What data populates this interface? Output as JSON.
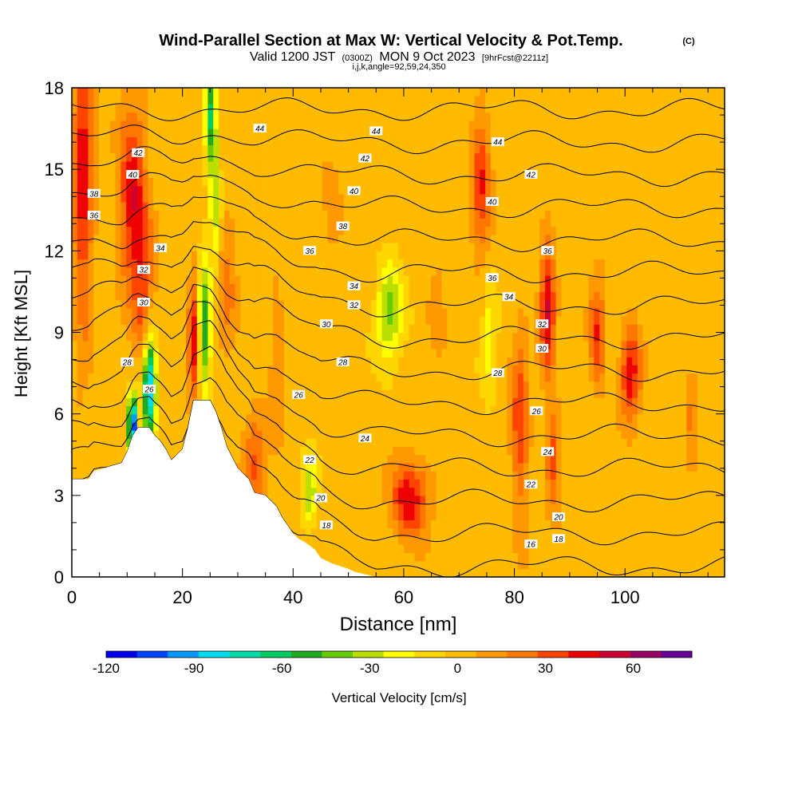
{
  "chart_data": {
    "type": "heatmap",
    "title": "Wind-Parallel Section at Max W: Vertical Velocity & Pot.Temp.",
    "title_mark": "(C)",
    "subtitle_valid": "Valid 1200 JST",
    "subtitle_utc": "(0300Z)",
    "subtitle_date": "MON 9 Oct 2023",
    "subtitle_fcst": "[9hrFcst@2211z]",
    "subtitle_indices": "i,j,k,angle=92,59,24,350",
    "xlabel": "Distance [nm]",
    "ylabel": "Height [Kft MSL]",
    "xlim": [
      0,
      118
    ],
    "ylim": [
      0,
      18
    ],
    "x_ticks": [
      0,
      20,
      40,
      60,
      80,
      100
    ],
    "x_tick_labels": [
      "0",
      "20",
      "40",
      "60",
      "80",
      "100"
    ],
    "y_ticks": [
      0,
      3,
      6,
      9,
      12,
      15,
      18
    ],
    "y_tick_labels": [
      "0",
      "3",
      "6",
      "9",
      "12",
      "15",
      "18"
    ],
    "colorbar": {
      "label": "Vertical Velocity [cm/s]",
      "min": -120,
      "max": 80,
      "tick_values": [
        -120,
        -90,
        -60,
        -30,
        0,
        30,
        60
      ],
      "tick_labels": [
        "-120",
        "-90",
        "-60",
        "-30",
        "0",
        "30",
        "60"
      ],
      "colors": [
        "#0000ee",
        "#0044ff",
        "#0099ff",
        "#00ddee",
        "#00ddaa",
        "#00cc66",
        "#22aa22",
        "#66cc00",
        "#bbe000",
        "#ffff00",
        "#ffd700",
        "#ffbb00",
        "#ff9900",
        "#ff7700",
        "#ff4400",
        "#ee0000",
        "#cc0033",
        "#990066",
        "#660099"
      ]
    },
    "contour_levels": [
      16,
      18,
      20,
      22,
      24,
      26,
      28,
      30,
      32,
      34,
      36,
      38,
      40,
      42,
      44
    ],
    "contour_labels": [
      {
        "x": 34,
        "y": 16.5,
        "text": "44"
      },
      {
        "x": 55,
        "y": 16.4,
        "text": "44"
      },
      {
        "x": 77,
        "y": 16.0,
        "text": "44"
      },
      {
        "x": 12,
        "y": 15.6,
        "text": "42"
      },
      {
        "x": 53,
        "y": 15.4,
        "text": "42"
      },
      {
        "x": 83,
        "y": 14.8,
        "text": "42"
      },
      {
        "x": 11,
        "y": 14.8,
        "text": "40"
      },
      {
        "x": 51,
        "y": 14.2,
        "text": "40"
      },
      {
        "x": 76,
        "y": 13.8,
        "text": "40"
      },
      {
        "x": 4,
        "y": 14.1,
        "text": "38"
      },
      {
        "x": 49,
        "y": 12.9,
        "text": "38"
      },
      {
        "x": 4,
        "y": 13.3,
        "text": "36"
      },
      {
        "x": 43,
        "y": 12.0,
        "text": "36"
      },
      {
        "x": 76,
        "y": 11.0,
        "text": "36"
      },
      {
        "x": 86,
        "y": 12.0,
        "text": "36"
      },
      {
        "x": 16,
        "y": 12.1,
        "text": "34"
      },
      {
        "x": 51,
        "y": 10.7,
        "text": "34"
      },
      {
        "x": 79,
        "y": 10.3,
        "text": "34"
      },
      {
        "x": 13,
        "y": 11.3,
        "text": "32"
      },
      {
        "x": 51,
        "y": 10.0,
        "text": "32"
      },
      {
        "x": 85,
        "y": 9.3,
        "text": "32"
      },
      {
        "x": 13,
        "y": 10.1,
        "text": "30"
      },
      {
        "x": 46,
        "y": 9.3,
        "text": "30"
      },
      {
        "x": 85,
        "y": 8.4,
        "text": "30"
      },
      {
        "x": 10,
        "y": 7.9,
        "text": "28"
      },
      {
        "x": 49,
        "y": 7.9,
        "text": "28"
      },
      {
        "x": 77,
        "y": 7.5,
        "text": "28"
      },
      {
        "x": 14,
        "y": 6.9,
        "text": "26"
      },
      {
        "x": 41,
        "y": 6.7,
        "text": "26"
      },
      {
        "x": 84,
        "y": 6.1,
        "text": "26"
      },
      {
        "x": 53,
        "y": 5.1,
        "text": "24"
      },
      {
        "x": 86,
        "y": 4.6,
        "text": "24"
      },
      {
        "x": 43,
        "y": 4.3,
        "text": "22"
      },
      {
        "x": 83,
        "y": 3.4,
        "text": "22"
      },
      {
        "x": 45,
        "y": 2.9,
        "text": "20"
      },
      {
        "x": 88,
        "y": 2.2,
        "text": "20"
      },
      {
        "x": 46,
        "y": 1.9,
        "text": "18"
      },
      {
        "x": 88,
        "y": 1.4,
        "text": "18"
      },
      {
        "x": 83,
        "y": 1.2,
        "text": "16"
      }
    ],
    "terrain": [
      [
        0,
        3.6
      ],
      [
        3,
        3.6
      ],
      [
        4,
        3.9
      ],
      [
        9,
        4.2
      ],
      [
        10,
        4.6
      ],
      [
        11,
        5.2
      ],
      [
        12,
        5.5
      ],
      [
        14,
        5.5
      ],
      [
        15,
        5.2
      ],
      [
        16,
        5.0
      ],
      [
        17,
        4.7
      ],
      [
        18,
        4.3
      ],
      [
        20,
        4.7
      ],
      [
        21,
        5.5
      ],
      [
        22,
        6.5
      ],
      [
        25,
        6.5
      ],
      [
        26,
        6.1
      ],
      [
        27,
        5.5
      ],
      [
        28,
        4.8
      ],
      [
        29,
        4.4
      ],
      [
        30,
        4.0
      ],
      [
        31,
        3.8
      ],
      [
        32,
        3.6
      ],
      [
        33,
        3.1
      ],
      [
        35,
        3.0
      ],
      [
        37,
        2.6
      ],
      [
        38,
        2.2
      ],
      [
        39,
        1.9
      ],
      [
        40,
        1.6
      ],
      [
        41,
        1.4
      ],
      [
        42,
        1.3
      ],
      [
        44,
        1.0
      ],
      [
        45,
        0.7
      ],
      [
        46,
        0.6
      ],
      [
        47,
        0.5
      ],
      [
        50,
        0.3
      ],
      [
        51,
        0.2
      ],
      [
        55,
        0.0
      ],
      [
        118,
        0.0
      ]
    ]
  }
}
